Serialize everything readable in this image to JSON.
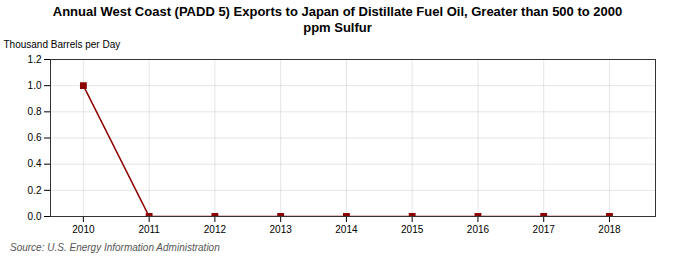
{
  "chart_data": {
    "type": "line",
    "title": "Annual West Coast (PADD 5) Exports to Japan of Distillate Fuel Oil, Greater than 500 to 2000\nppm Sulfur",
    "ylabel": "Thousand Barrels per Day",
    "source": "Source: U.S. Energy Information Administration",
    "x": [
      2010,
      2011,
      2012,
      2013,
      2014,
      2015,
      2016,
      2017,
      2018
    ],
    "values": [
      1.0,
      0,
      0.0,
      0.0,
      0,
      0,
      0,
      0,
      0.0
    ],
    "color": "#8b0000",
    "marker": "square",
    "line_style": "solid",
    "xlim": [
      2009.5,
      2018.7
    ],
    "ylim": [
      0.0,
      1.2
    ],
    "xticks": [
      2010,
      2011,
      2012,
      2013,
      2014,
      2015,
      2016,
      2017,
      2018
    ],
    "yticks": [
      {
        "value": 0.0,
        "label": "0.0"
      },
      0.2,
      0.4,
      0.6,
      0.8,
      {
        "value": 1.0,
        "label": "1.0"
      },
      1.2
    ],
    "grid": true
  }
}
